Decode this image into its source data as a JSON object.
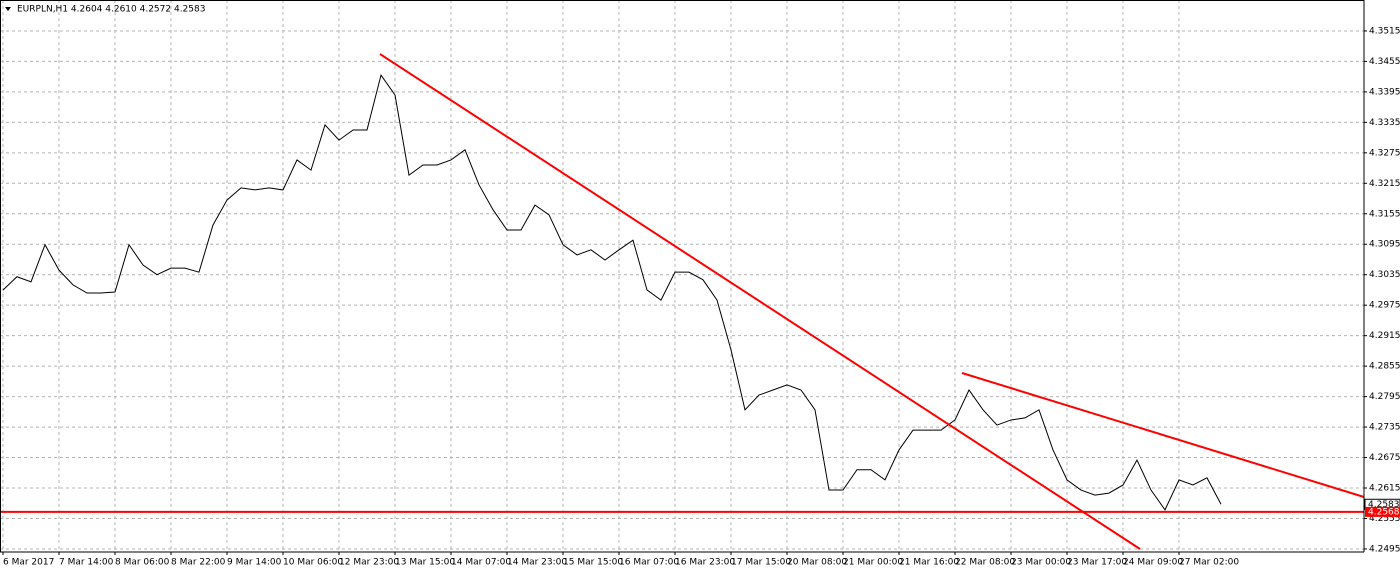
{
  "chart_data": {
    "type": "line",
    "title": "EURPLN,H1  4.2604 4.2610 4.2572 4.2583",
    "categories": [
      "6 Mar 2017",
      null,
      null,
      null,
      "7 Mar 14:00",
      null,
      null,
      null,
      "8 Mar 06:00",
      null,
      null,
      null,
      "8 Mar 22:00",
      null,
      null,
      null,
      "9 Mar 14:00",
      null,
      null,
      null,
      "10 Mar 06:00",
      null,
      null,
      null,
      "12 Mar 23:00",
      null,
      null,
      null,
      "13 Mar 15:00",
      null,
      null,
      null,
      "14 Mar 07:00",
      null,
      null,
      null,
      "14 Mar 23:00",
      null,
      null,
      null,
      "15 Mar 15:00",
      null,
      null,
      null,
      "16 Mar 07:00",
      null,
      null,
      null,
      "16 Mar 23:00",
      null,
      null,
      null,
      "17 Mar 15:00",
      null,
      null,
      null,
      "20 Mar 08:00",
      null,
      null,
      null,
      "21 Mar 00:00",
      null,
      null,
      null,
      "21 Mar 16:00",
      null,
      null,
      null,
      "22 Mar 08:00",
      null,
      null,
      null,
      "23 Mar 00:00",
      null,
      null,
      null,
      "23 Mar 17:00",
      null,
      null,
      null,
      "24 Mar 09:00",
      null,
      null,
      null,
      "27 Mar 02:00",
      null,
      null,
      null
    ],
    "series": [
      {
        "name": "EURPLN,H1",
        "color": "#000000",
        "values": [
          4.3005,
          4.3031,
          4.3021,
          4.3094,
          4.3044,
          4.3015,
          4.2999,
          4.2999,
          4.3001,
          4.3094,
          4.3054,
          4.3035,
          4.3048,
          4.3048,
          4.304,
          4.3133,
          4.3182,
          4.3206,
          4.3202,
          4.3206,
          4.3202,
          4.3261,
          4.3241,
          4.333,
          4.33,
          4.332,
          4.332,
          4.3428,
          4.3389,
          4.3231,
          4.3251,
          4.3251,
          4.3261,
          4.3281,
          4.3212,
          4.3163,
          4.3123,
          4.3123,
          4.3172,
          4.3153,
          4.3094,
          4.3074,
          4.3084,
          4.3064,
          4.3084,
          4.3103,
          4.3005,
          4.2985,
          4.304,
          4.304,
          4.3025,
          4.2985,
          4.2887,
          4.2769,
          4.2798,
          4.2808,
          4.2818,
          4.2808,
          4.2769,
          4.2611,
          4.2611,
          4.2651,
          4.2651,
          4.2631,
          4.269,
          4.2729,
          4.2729,
          4.2729,
          4.2749,
          4.2808,
          4.2769,
          4.2739,
          4.2749,
          4.2753,
          4.2769,
          4.269,
          4.2631,
          4.2611,
          4.2601,
          4.2605,
          4.2621,
          4.267,
          4.2611,
          4.2572,
          4.2631,
          4.2621,
          4.2635,
          4.2583
        ]
      }
    ],
    "ylim": [
      4.2489,
      4.3572
    ],
    "yticks": [
      4.3515,
      4.3455,
      4.3395,
      4.3335,
      4.3275,
      4.3215,
      4.3155,
      4.3095,
      4.3035,
      4.2975,
      4.2915,
      4.2855,
      4.2795,
      4.2735,
      4.2675,
      4.2615,
      4.2555,
      4.2495
    ],
    "horizontal_line": {
      "value": 4.2568,
      "color": "#ff0000"
    },
    "last_price": 4.2583,
    "grid": true
  }
}
